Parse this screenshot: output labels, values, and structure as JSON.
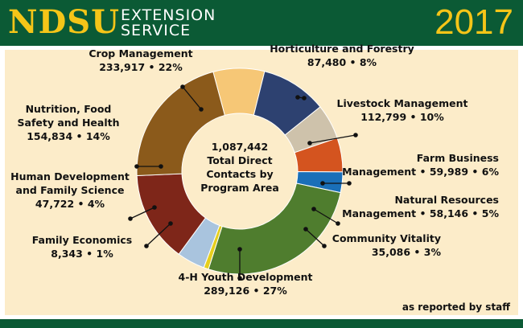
{
  "header": {
    "logo": "NDSU",
    "org_line1": "EXTENSION",
    "org_line2": "SERVICE",
    "year": "2017"
  },
  "center": {
    "line1": "1,087,442",
    "line2": "Total Direct",
    "line3": "Contacts by",
    "line4": "Program Area"
  },
  "note": "as reported by staff",
  "colors": {
    "header_bg": "#0b5a35",
    "brand_gold": "#f5c518",
    "panel_bg": "#fcecc9"
  },
  "chart_data": {
    "type": "pie",
    "donut": true,
    "total": 1087442,
    "slices": [
      {
        "name": "Horticulture and Forestry",
        "value": 87480,
        "percent": 8,
        "label_lines": [
          "Horticulture and Forestry",
          "87,480 • 8%"
        ],
        "color": "#f6c776"
      },
      {
        "name": "Livestock Management",
        "value": 112799,
        "percent": 10,
        "label_lines": [
          "Livestock Management",
          "112,799 • 10%"
        ],
        "color": "#2d4170"
      },
      {
        "name": "Farm Business Management",
        "value": 59989,
        "percent": 6,
        "label_lines": [
          "Farm Business",
          "Management • 59,989 • 6%"
        ],
        "color": "#cec2ab"
      },
      {
        "name": "Natural Resources Management",
        "value": 58146,
        "percent": 5,
        "label_lines": [
          "Natural Resources",
          "Management • 58,146 • 5%"
        ],
        "color": "#d4541f"
      },
      {
        "name": "Community Vitality",
        "value": 35086,
        "percent": 3,
        "label_lines": [
          "Community Vitality",
          "35,086 • 3%"
        ],
        "color": "#1a6fb8"
      },
      {
        "name": "4-H Youth Development",
        "value": 289126,
        "percent": 27,
        "label_lines": [
          "4-H Youth Development",
          "289,126 • 27%"
        ],
        "color": "#4f7d2e"
      },
      {
        "name": "Family Economics",
        "value": 8343,
        "percent": 1,
        "label_lines": [
          "Family Economics",
          "8,343 • 1%"
        ],
        "color": "#e6cf1e"
      },
      {
        "name": "Human Development and Family Science",
        "value": 47722,
        "percent": 4,
        "label_lines": [
          "Human Development",
          "and Family Science",
          "47,722 • 4%"
        ],
        "color": "#a9c4de"
      },
      {
        "name": "Nutrition, Food Safety and Health",
        "value": 154834,
        "percent": 14,
        "label_lines": [
          "Nutrition, Food",
          "Safety and Health",
          "154,834 • 14%"
        ],
        "color": "#7e2619"
      },
      {
        "name": "Crop Management",
        "value": 233917,
        "percent": 22,
        "label_lines": [
          "Crop Management",
          "233,917 • 22%"
        ],
        "color": "#8b5a1b"
      }
    ]
  }
}
